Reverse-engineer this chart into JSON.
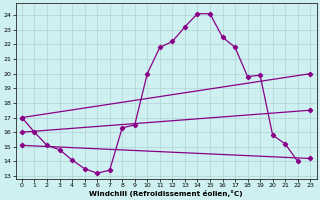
{
  "background_color": "#cff0f0",
  "line_color": "#880088",
  "xlabel": "Windchill (Refroidissement éolien,°C)",
  "xlim": [
    -0.5,
    23.5
  ],
  "ylim": [
    12.8,
    24.8
  ],
  "yticks": [
    13,
    14,
    15,
    16,
    17,
    18,
    19,
    20,
    21,
    22,
    23,
    24
  ],
  "xticks": [
    0,
    1,
    2,
    3,
    4,
    5,
    6,
    7,
    8,
    9,
    10,
    11,
    12,
    13,
    14,
    15,
    16,
    17,
    18,
    19,
    20,
    21,
    22,
    23
  ],
  "curve_x": [
    0,
    1,
    2,
    3,
    4,
    5,
    6,
    7,
    8,
    9,
    10,
    11,
    12,
    13,
    14,
    15,
    16,
    17,
    18,
    19,
    20,
    21,
    22
  ],
  "curve_y": [
    17.0,
    16.0,
    15.1,
    14.8,
    14.1,
    13.5,
    13.2,
    13.4,
    16.3,
    16.5,
    20.0,
    21.8,
    22.2,
    23.2,
    24.1,
    24.1,
    22.5,
    21.8,
    19.8,
    19.9,
    15.8,
    15.2,
    14.0
  ],
  "line1_x": [
    0,
    23
  ],
  "line1_y": [
    17.0,
    20.0
  ],
  "line2_x": [
    0,
    23
  ],
  "line2_y": [
    16.0,
    17.5
  ],
  "line3_x": [
    0,
    23
  ],
  "line3_y": [
    15.1,
    14.2
  ]
}
